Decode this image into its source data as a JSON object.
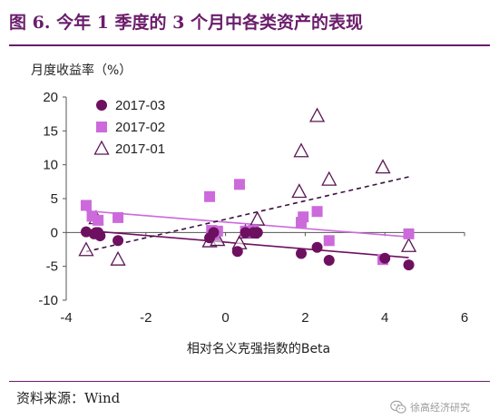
{
  "header": {
    "title": "图 6.   今年 1 季度的 3 个月中各类资产的表现"
  },
  "footer": {
    "source": "资料来源：Wind",
    "watermark": "徐高经济研究",
    "watermark_icon": "wechat-icon"
  },
  "colors": {
    "title": "#6b1d6b",
    "s2017_03": "#6e1060",
    "s2017_02": "#cc6adb",
    "s2017_01": "#5a1654",
    "trend_2017_01": "#3a1040"
  },
  "chart_data": {
    "type": "scatter",
    "xlabel": "相对名义克强指数的Beta",
    "ylabel": "月度收益率（%）",
    "xlim": [
      -4,
      6
    ],
    "ylim": [
      -10,
      20
    ],
    "xticks": [
      -4,
      -2,
      0,
      2,
      4,
      6
    ],
    "yticks": [
      -10,
      -5,
      0,
      5,
      10,
      15,
      20
    ],
    "grid": false,
    "legend_position": "top-left",
    "series": [
      {
        "name": "2017-03",
        "marker": "circle",
        "trendline": "solid",
        "points": [
          [
            -3.5,
            0.1
          ],
          [
            -3.3,
            -0.2
          ],
          [
            -3.25,
            0.0
          ],
          [
            -3.2,
            0.0
          ],
          [
            -3.15,
            -0.5
          ],
          [
            -2.7,
            -1.2
          ],
          [
            -0.4,
            -0.8
          ],
          [
            -0.3,
            0.0
          ],
          [
            0.3,
            -2.8
          ],
          [
            0.5,
            0.0
          ],
          [
            0.7,
            0.0
          ],
          [
            0.8,
            0.0
          ],
          [
            1.9,
            -3.1
          ],
          [
            2.3,
            -2.2
          ],
          [
            2.6,
            -4.1
          ],
          [
            4.0,
            -3.8
          ],
          [
            4.6,
            -4.8
          ]
        ]
      },
      {
        "name": "2017-02",
        "marker": "square",
        "trendline": "solid",
        "points": [
          [
            -3.5,
            4.0
          ],
          [
            -3.35,
            2.4
          ],
          [
            -3.2,
            1.8
          ],
          [
            -2.7,
            2.2
          ],
          [
            -0.4,
            5.3
          ],
          [
            -0.35,
            0.3
          ],
          [
            -0.3,
            -0.3
          ],
          [
            -0.2,
            0.2
          ],
          [
            0.35,
            7.1
          ],
          [
            0.5,
            0.2
          ],
          [
            0.6,
            0.0
          ],
          [
            0.7,
            0.3
          ],
          [
            1.9,
            1.5
          ],
          [
            1.95,
            2.3
          ],
          [
            2.3,
            3.1
          ],
          [
            2.6,
            -1.2
          ],
          [
            3.95,
            -4.0
          ],
          [
            4.6,
            -0.2
          ]
        ]
      },
      {
        "name": "2017-01",
        "marker": "triangle-open",
        "trendline": "dashed",
        "points": [
          [
            -3.5,
            -2.6
          ],
          [
            -3.25,
            2.1
          ],
          [
            -2.7,
            -4.0
          ],
          [
            -0.4,
            -1.3
          ],
          [
            -0.3,
            -0.4
          ],
          [
            -0.2,
            -1.1
          ],
          [
            0.35,
            -1.6
          ],
          [
            0.5,
            0.0
          ],
          [
            0.65,
            0.0
          ],
          [
            0.8,
            1.9
          ],
          [
            1.85,
            6.0
          ],
          [
            1.9,
            12.0
          ],
          [
            2.3,
            17.2
          ],
          [
            2.6,
            7.8
          ],
          [
            3.95,
            9.6
          ],
          [
            4.6,
            -2.0
          ]
        ]
      }
    ]
  }
}
